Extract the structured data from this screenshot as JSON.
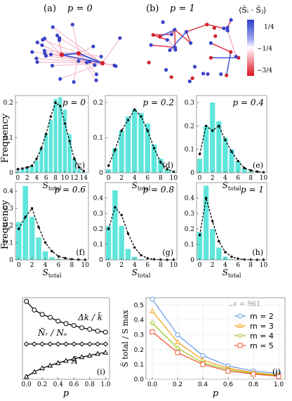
{
  "colors": {
    "bar": "#5fe6dc",
    "curve": "#000000",
    "pos_edge": "#3a4fd8",
    "neg_edge": "#e0283c",
    "weak_edge": "#f2b8c6",
    "m2": "#6a9ee8",
    "m3": "#f5a51c",
    "m4": "#9fcb2f",
    "m5": "#ef5b3a"
  },
  "panel_a": {
    "label": "(a)",
    "title": "p = 0"
  },
  "panel_b": {
    "label": "(b)",
    "title": "p = 1"
  },
  "colorbar": {
    "label": "⟨Ŝᵢ · Ŝⱼ⟩",
    "ticks": [
      "1/4",
      "−1/4",
      "−3/4"
    ]
  },
  "hist_common": {
    "ylabel": "Frequency",
    "xlabel": "S",
    "xlabel_sub": "total"
  },
  "chart_data": [
    {
      "type": "bar",
      "panel": "(c)",
      "title": "p = 0",
      "xlim": [
        -0.5,
        15
      ],
      "ylim": [
        0,
        0.22
      ],
      "xticks": [
        "0",
        "2",
        "4",
        "6",
        "8",
        "10",
        "12",
        "14"
      ],
      "yticks": [
        "0",
        "0.1",
        "0.2"
      ],
      "x": [
        0,
        1,
        2,
        3,
        4,
        5,
        6,
        7,
        8,
        9,
        10,
        11,
        12,
        13,
        14
      ],
      "values": [
        0.005,
        0.01,
        0.012,
        0.02,
        0.035,
        0.07,
        0.11,
        0.15,
        0.21,
        0.215,
        0.18,
        0.11,
        0.04,
        0.01,
        0.003
      ],
      "curve": [
        0.01,
        0.012,
        0.015,
        0.02,
        0.04,
        0.07,
        0.11,
        0.16,
        0.2,
        0.19,
        0.14,
        0.09,
        0.04,
        0.015,
        0.005
      ]
    },
    {
      "type": "bar",
      "panel": "(d)",
      "title": "p = 0.2",
      "xlim": [
        -0.5,
        10.5
      ],
      "ylim": [
        0,
        0.22
      ],
      "xticks": [
        "0",
        "2",
        "4",
        "6",
        "8",
        "10"
      ],
      "yticks": [
        "0",
        "0.1",
        "0.2"
      ],
      "x": [
        0,
        1,
        2,
        3,
        4,
        5,
        6,
        7,
        8,
        9,
        10
      ],
      "values": [
        0.01,
        0.07,
        0.12,
        0.16,
        0.18,
        0.17,
        0.14,
        0.08,
        0.04,
        0.01,
        0.003
      ],
      "curve": [
        0.02,
        0.065,
        0.12,
        0.15,
        0.18,
        0.16,
        0.12,
        0.07,
        0.03,
        0.01,
        0.003
      ]
    },
    {
      "type": "bar",
      "panel": "(e)",
      "title": "p = 0.4",
      "xlim": [
        -0.5,
        10.5
      ],
      "ylim": [
        0,
        0.33
      ],
      "xticks": [
        "0",
        "2",
        "4",
        "6",
        "8",
        "10"
      ],
      "yticks": [
        "0",
        "0.1",
        "0.2",
        "0.3"
      ],
      "x": [
        0,
        1,
        2,
        3,
        4,
        5,
        6,
        7,
        8,
        9,
        10
      ],
      "values": [
        0.06,
        0.2,
        0.3,
        0.22,
        0.15,
        0.1,
        0.05,
        0.02,
        0.005,
        0.002,
        0.001
      ],
      "curve": [
        0.08,
        0.2,
        0.18,
        0.2,
        0.14,
        0.09,
        0.05,
        0.02,
        0.01,
        0.005,
        0.002
      ]
    },
    {
      "type": "bar",
      "panel": "(f)",
      "title": "p = 0.6",
      "xlim": [
        -0.5,
        10.5
      ],
      "ylim": [
        0,
        0.45
      ],
      "xticks": [
        "0",
        "2",
        "4",
        "6",
        "8",
        "10"
      ],
      "yticks": [
        "0",
        "0.1",
        "0.2",
        "0.3",
        "0.4"
      ],
      "x": [
        0,
        1,
        2,
        3,
        4,
        5,
        6,
        7,
        8,
        9,
        10
      ],
      "values": [
        0.22,
        0.43,
        0.25,
        0.13,
        0.05,
        0.015,
        0.005,
        0.001,
        0,
        0,
        0
      ],
      "curve": [
        0.18,
        0.25,
        0.3,
        0.19,
        0.1,
        0.05,
        0.02,
        0.01,
        0.003,
        0.001,
        0
      ]
    },
    {
      "type": "bar",
      "panel": "(g)",
      "title": "p = 0.8",
      "xlim": [
        -0.5,
        10.5
      ],
      "ylim": [
        0,
        0.5
      ],
      "xticks": [
        "0",
        "2",
        "4",
        "6",
        "8",
        "10"
      ],
      "yticks": [
        "0",
        "0.1",
        "0.2",
        "0.3",
        "0.4"
      ],
      "x": [
        0,
        1,
        2,
        3,
        4,
        5,
        6,
        7,
        8,
        9,
        10
      ],
      "values": [
        0.22,
        0.45,
        0.22,
        0.07,
        0.02,
        0.005,
        0.001,
        0,
        0,
        0,
        0
      ],
      "curve": [
        0.2,
        0.34,
        0.29,
        0.17,
        0.08,
        0.03,
        0.01,
        0.003,
        0.001,
        0,
        0
      ]
    },
    {
      "type": "bar",
      "panel": "(h)",
      "title": "p = 1",
      "xlim": [
        -0.5,
        10.5
      ],
      "ylim": [
        0,
        0.5
      ],
      "xticks": [
        "0",
        "2",
        "4",
        "6",
        "8",
        "10"
      ],
      "yticks": [
        "0",
        "0.1",
        "0.2",
        "0.3",
        "0.4"
      ],
      "x": [
        0,
        1,
        2,
        3,
        4,
        5,
        6,
        7,
        8,
        9,
        10
      ],
      "values": [
        0.18,
        0.48,
        0.2,
        0.08,
        0.02,
        0.005,
        0.001,
        0,
        0,
        0,
        0
      ],
      "curve": [
        0.16,
        0.4,
        0.25,
        0.12,
        0.05,
        0.02,
        0.008,
        0.002,
        0.001,
        0,
        0
      ]
    },
    {
      "type": "line",
      "panel": "(i)",
      "xlabel": "p",
      "xlim": [
        -0.05,
        1.05
      ],
      "ylim": [
        -0.75,
        1.45
      ],
      "xticks": [
        "0.0",
        "0.2",
        "0.4",
        "0.6",
        "0.8",
        "1.0"
      ],
      "x": [
        0,
        0.1,
        0.2,
        0.3,
        0.4,
        0.5,
        0.6,
        0.7,
        0.8,
        0.9,
        1.0
      ],
      "series": [
        {
          "name": "Δk / k̄",
          "marker": "circle",
          "values": [
            1.35,
            1.12,
            1.0,
            0.92,
            0.82,
            0.75,
            0.7,
            0.64,
            0.6,
            0.55,
            0.52
          ]
        },
        {
          "name": "N̄ᵣ / Nₑ",
          "marker": "diamond",
          "values": [
            0.2,
            0.2,
            0.2,
            0.2,
            0.2,
            0.2,
            0.2,
            0.2,
            0.2,
            0.2,
            0.2
          ]
        },
        {
          "name": "Ā",
          "marker": "triangle",
          "values": [
            -0.68,
            -0.55,
            -0.45,
            -0.38,
            -0.31,
            -0.25,
            -0.2,
            -0.15,
            -0.11,
            -0.06,
            -0.03
          ]
        }
      ]
    },
    {
      "type": "line",
      "panel": "(j)",
      "annotation": "𝒩 = 961",
      "xlabel": "p",
      "ylabel": "S̄ total / S max",
      "xlim": [
        -0.05,
        1.05
      ],
      "ylim": [
        0,
        0.55
      ],
      "xticks": [
        "0.0",
        "0.2",
        "0.4",
        "0.6",
        "0.8",
        "1.0"
      ],
      "yticks": [
        "0.0",
        "0.1",
        "0.2",
        "0.3",
        "0.4",
        "0.5"
      ],
      "legend_position": "top-right",
      "x": [
        0,
        0.2,
        0.4,
        0.6,
        0.8,
        1.0
      ],
      "series": [
        {
          "name": "m = 2",
          "marker": "circle",
          "values": [
            0.54,
            0.3,
            0.16,
            0.09,
            0.055,
            0.04
          ]
        },
        {
          "name": "m = 3",
          "marker": "triangle",
          "values": [
            0.46,
            0.25,
            0.13,
            0.075,
            0.045,
            0.03
          ]
        },
        {
          "name": "m = 4",
          "marker": "diamond",
          "values": [
            0.38,
            0.21,
            0.11,
            0.065,
            0.04,
            0.025
          ]
        },
        {
          "name": "m = 5",
          "marker": "square",
          "values": [
            0.32,
            0.18,
            0.1,
            0.055,
            0.035,
            0.02
          ]
        }
      ]
    }
  ]
}
